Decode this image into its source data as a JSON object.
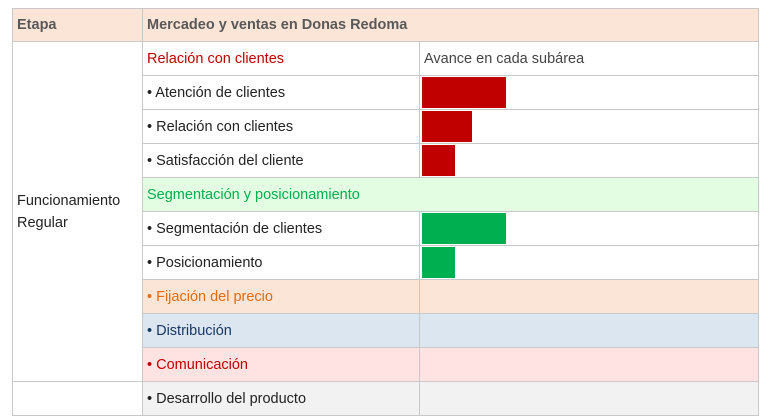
{
  "header": {
    "stage_label": "Etapa",
    "title": "Mercadeo y ventas en Donas Redoma"
  },
  "stage": {
    "name": "Funcionamiento Regular"
  },
  "sections": {
    "relacion": {
      "label": "Relación con clientes",
      "progress_header": "Avance en cada subárea",
      "color": "#c00000",
      "items": [
        {
          "label": "• Atención de clientes",
          "progress": 0.25
        },
        {
          "label": "• Relación con clientes",
          "progress": 0.15
        },
        {
          "label": "• Satisfacción del cliente",
          "progress": 0.1
        }
      ]
    },
    "segmentacion": {
      "label": "Segmentación y posicionamiento",
      "color": "#00b050",
      "items": [
        {
          "label": "• Segmentación de clientes",
          "progress": 0.25
        },
        {
          "label": "• Posicionamiento",
          "progress": 0.1
        }
      ]
    },
    "precio": {
      "label": "• Fijación del precio"
    },
    "distribucion": {
      "label": "• Distribución"
    },
    "comunicacion": {
      "label": "• Comunicación"
    },
    "producto": {
      "label": "• Desarrollo del producto"
    }
  }
}
